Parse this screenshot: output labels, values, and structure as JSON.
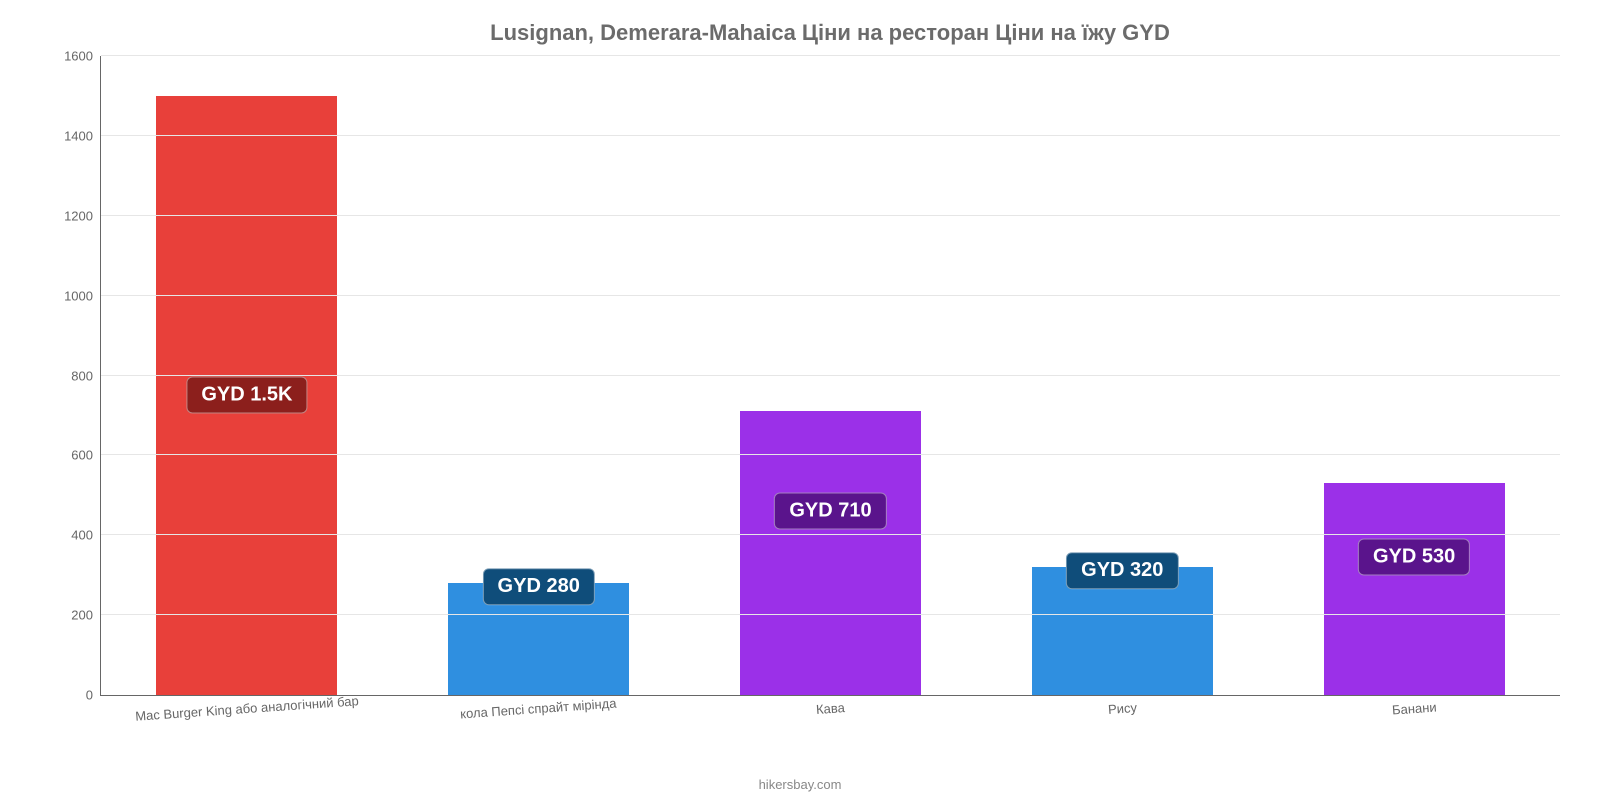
{
  "chart": {
    "type": "bar",
    "title": "Lusignan, Demerara-Mahaica Ціни на ресторан Ціни на їжу GYD",
    "title_color": "#6b6b6b",
    "title_fontsize": 22,
    "background_color": "#ffffff",
    "grid_color": "#e6e6e6",
    "axis_color": "#666666",
    "ylim": [
      0,
      1600
    ],
    "ytick_step": 200,
    "yticks": [
      0,
      200,
      400,
      600,
      800,
      1000,
      1200,
      1400,
      1600
    ],
    "bar_width_pct": 62,
    "label_fontsize": 13,
    "categories": [
      "Mac Burger King або аналогічний бар",
      "кола Пепсі спрайт мірінда",
      "Кава",
      "Рису",
      "Банани"
    ],
    "values": [
      1500,
      280,
      710,
      320,
      530
    ],
    "bar_colors": [
      "#e8403a",
      "#2f8fe0",
      "#9b30e8",
      "#2f8fe0",
      "#9b30e8"
    ],
    "value_labels": [
      "GYD 1.5K",
      "GYD 280",
      "GYD 710",
      "GYD 320",
      "GYD 530"
    ],
    "badge_bg_colors": [
      "#8c1f1c",
      "#0f4d7a",
      "#5a148c",
      "#0f4d7a",
      "#5a148c"
    ],
    "badge_fontsize": 20,
    "attribution": "hikersbay.com",
    "attribution_color": "#888888"
  }
}
